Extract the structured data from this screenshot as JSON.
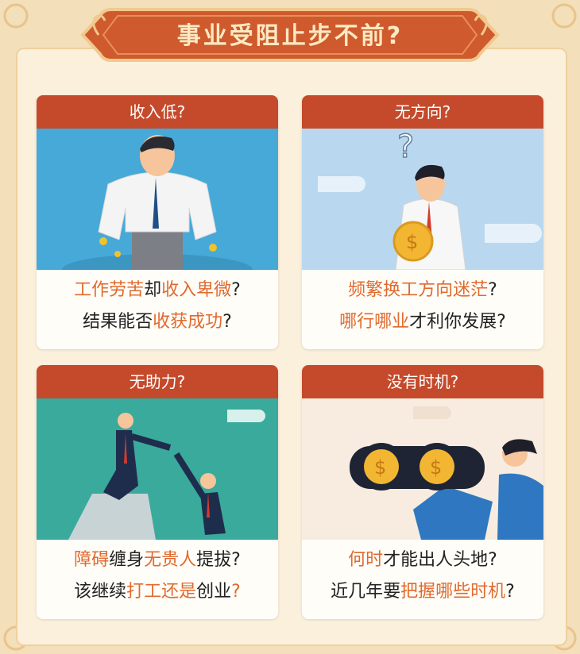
{
  "title": "事业受阻止步不前?",
  "colors": {
    "accent": "#c44a2b",
    "highlight": "#e06a2e",
    "background": "#f3dfb9"
  },
  "cards": [
    {
      "heading": "收入低?",
      "line1": [
        {
          "text": "工作劳苦",
          "hl": true
        },
        {
          "text": "却",
          "hl": false
        },
        {
          "text": "收入卑微",
          "hl": true
        },
        {
          "text": "?",
          "hl": false
        }
      ],
      "line2": [
        {
          "text": "结果能否",
          "hl": false
        },
        {
          "text": "收获成功",
          "hl": true
        },
        {
          "text": "?",
          "hl": false
        }
      ]
    },
    {
      "heading": "无方向?",
      "line1": [
        {
          "text": "频繁换工方向迷茫",
          "hl": true
        },
        {
          "text": "?",
          "hl": false
        }
      ],
      "line2": [
        {
          "text": "哪行哪业",
          "hl": true
        },
        {
          "text": "才利你发展?",
          "hl": false
        }
      ]
    },
    {
      "heading": "无助力?",
      "line1": [
        {
          "text": "障碍",
          "hl": true
        },
        {
          "text": "缠身",
          "hl": false
        },
        {
          "text": "无贵人",
          "hl": true
        },
        {
          "text": "提拔?",
          "hl": false
        }
      ],
      "line2": [
        {
          "text": "该继续",
          "hl": false
        },
        {
          "text": "打工还是",
          "hl": true
        },
        {
          "text": "创业",
          "hl": false
        },
        {
          "text": "?",
          "hl": true
        }
      ]
    },
    {
      "heading": "没有时机?",
      "line1": [
        {
          "text": "何时",
          "hl": true
        },
        {
          "text": "才能出人头地?",
          "hl": false
        }
      ],
      "line2": [
        {
          "text": "近几年要",
          "hl": false
        },
        {
          "text": "把握哪些时机",
          "hl": true
        },
        {
          "text": "?",
          "hl": false
        }
      ]
    }
  ]
}
